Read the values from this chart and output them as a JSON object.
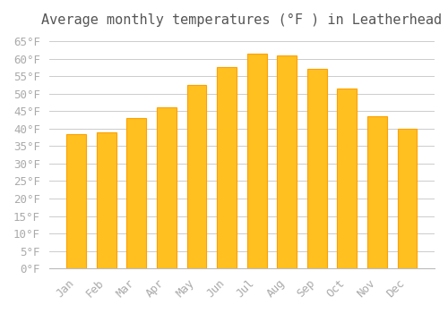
{
  "title": "Average monthly temperatures (°F ) in Leatherhead",
  "months": [
    "Jan",
    "Feb",
    "Mar",
    "Apr",
    "May",
    "Jun",
    "Jul",
    "Aug",
    "Sep",
    "Oct",
    "Nov",
    "Dec"
  ],
  "values": [
    38.5,
    39.0,
    43.0,
    46.0,
    52.5,
    57.5,
    61.5,
    61.0,
    57.0,
    51.5,
    43.5,
    40.0
  ],
  "bar_color_face": "#FFC020",
  "bar_color_edge": "#FFA000",
  "background_color": "#FFFFFF",
  "grid_color": "#CCCCCC",
  "tick_label_color": "#AAAAAA",
  "title_color": "#555555",
  "ylim": [
    0,
    67
  ],
  "yticks": [
    0,
    5,
    10,
    15,
    20,
    25,
    30,
    35,
    40,
    45,
    50,
    55,
    60,
    65
  ],
  "title_fontsize": 11,
  "tick_fontsize": 9
}
